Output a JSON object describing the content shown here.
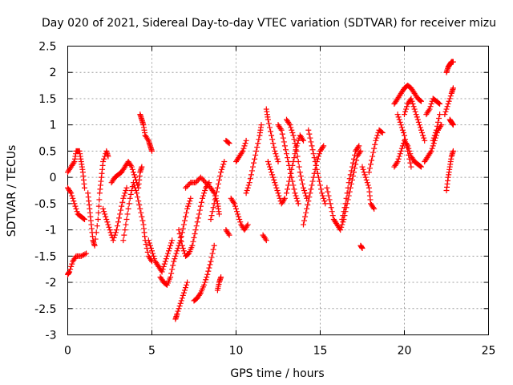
{
  "chart_data": {
    "type": "scatter",
    "title": "Day 020 of 2021, Sidereal Day-to-day VTEC variation (SDTVAR) for receiver mizu",
    "xlabel": "GPS time / hours",
    "ylabel": "SDTVAR / TECUs",
    "xlim": [
      0,
      25
    ],
    "ylim": [
      -3,
      2.5
    ],
    "grid": true,
    "marker": "+",
    "color": "#ff0000",
    "x_ticks": [
      0,
      5,
      10,
      15,
      20,
      25
    ],
    "x_tick_labels": [
      "0",
      "5",
      "10",
      "15",
      "20",
      "25"
    ],
    "y_ticks": [
      -3,
      -2.5,
      -2,
      -1.5,
      -1,
      -0.5,
      0,
      0.5,
      1,
      1.5,
      2,
      2.5
    ],
    "y_tick_labels": [
      "-3",
      "-2.5",
      "-2",
      "-1.5",
      "-1",
      "-0.5",
      "0",
      "0.5",
      "1",
      "1.5",
      "2",
      "2.5"
    ],
    "tracks": [
      [
        [
          0.0,
          0.1
        ],
        [
          0.2,
          0.2
        ],
        [
          0.4,
          0.3
        ],
        [
          0.5,
          0.5
        ],
        [
          0.7,
          0.5
        ],
        [
          0.8,
          0.3
        ],
        [
          0.9,
          0.1
        ],
        [
          1.0,
          -0.2
        ]
      ],
      [
        [
          0.0,
          -0.2
        ],
        [
          0.2,
          -0.3
        ],
        [
          0.4,
          -0.5
        ],
        [
          0.6,
          -0.7
        ],
        [
          0.8,
          -0.75
        ],
        [
          1.0,
          -0.8
        ]
      ],
      [
        [
          0.0,
          -1.85
        ],
        [
          0.1,
          -1.8
        ],
        [
          0.3,
          -1.6
        ],
        [
          0.5,
          -1.5
        ],
        [
          0.8,
          -1.5
        ],
        [
          1.1,
          -1.45
        ]
      ],
      [
        [
          1.2,
          -0.3
        ],
        [
          1.3,
          -0.6
        ],
        [
          1.4,
          -0.9
        ],
        [
          1.5,
          -1.2
        ],
        [
          1.6,
          -1.3
        ],
        [
          1.8,
          -0.8
        ],
        [
          1.9,
          -0.3
        ],
        [
          2.0,
          0.0
        ],
        [
          2.1,
          0.3
        ],
        [
          2.3,
          0.5
        ],
        [
          2.4,
          0.4
        ]
      ],
      [
        [
          2.1,
          -0.6
        ],
        [
          2.3,
          -0.8
        ],
        [
          2.5,
          -1.0
        ],
        [
          2.7,
          -1.2
        ],
        [
          2.9,
          -1.0
        ],
        [
          3.1,
          -0.7
        ],
        [
          3.3,
          -0.4
        ],
        [
          3.5,
          -0.2
        ]
      ],
      [
        [
          2.6,
          -0.1
        ],
        [
          2.8,
          0.0
        ],
        [
          3.0,
          0.05
        ],
        [
          3.2,
          0.1
        ],
        [
          3.4,
          0.2
        ],
        [
          3.6,
          0.3
        ],
        [
          3.8,
          0.2
        ],
        [
          4.0,
          0.0
        ],
        [
          4.2,
          -0.2
        ],
        [
          4.3,
          0.1
        ],
        [
          4.4,
          0.2
        ]
      ],
      [
        [
          3.3,
          -1.2
        ],
        [
          3.5,
          -0.8
        ],
        [
          3.7,
          -0.4
        ],
        [
          3.9,
          -0.1
        ],
        [
          4.1,
          -0.3
        ],
        [
          4.3,
          -0.6
        ],
        [
          4.5,
          -0.9
        ],
        [
          4.6,
          -1.2
        ],
        [
          4.8,
          -1.5
        ],
        [
          5.0,
          -1.6
        ]
      ],
      [
        [
          4.3,
          1.2
        ],
        [
          4.4,
          1.1
        ],
        [
          4.5,
          1.0
        ],
        [
          4.6,
          0.8
        ],
        [
          4.8,
          0.7
        ],
        [
          4.9,
          0.6
        ],
        [
          5.0,
          0.5
        ]
      ],
      [
        [
          4.8,
          -1.2
        ],
        [
          5.0,
          -1.4
        ],
        [
          5.2,
          -1.6
        ],
        [
          5.4,
          -1.7
        ],
        [
          5.6,
          -1.8
        ],
        [
          5.8,
          -1.6
        ],
        [
          6.0,
          -1.4
        ],
        [
          6.2,
          -1.2
        ]
      ],
      [
        [
          5.5,
          -1.9
        ],
        [
          5.7,
          -2.0
        ],
        [
          5.9,
          -2.05
        ],
        [
          6.1,
          -1.9
        ],
        [
          6.3,
          -1.6
        ],
        [
          6.5,
          -1.4
        ],
        [
          6.7,
          -1.2
        ],
        [
          6.9,
          -0.9
        ],
        [
          7.1,
          -0.6
        ],
        [
          7.3,
          -0.4
        ]
      ],
      [
        [
          6.4,
          -2.7
        ],
        [
          6.5,
          -2.6
        ],
        [
          6.7,
          -2.4
        ],
        [
          6.9,
          -2.2
        ],
        [
          7.1,
          -2.0
        ]
      ],
      [
        [
          6.6,
          -1.0
        ],
        [
          6.8,
          -1.3
        ],
        [
          7.0,
          -1.5
        ],
        [
          7.2,
          -1.45
        ],
        [
          7.4,
          -1.3
        ],
        [
          7.6,
          -1.0
        ],
        [
          7.8,
          -0.7
        ],
        [
          8.0,
          -0.4
        ],
        [
          8.2,
          -0.2
        ],
        [
          8.4,
          -0.1
        ]
      ],
      [
        [
          7.5,
          -2.35
        ],
        [
          7.7,
          -2.3
        ],
        [
          7.9,
          -2.2
        ],
        [
          8.1,
          -2.05
        ],
        [
          8.3,
          -1.85
        ],
        [
          8.5,
          -1.6
        ],
        [
          8.7,
          -1.3
        ]
      ],
      [
        [
          7.0,
          -0.2
        ],
        [
          7.3,
          -0.1
        ],
        [
          7.6,
          -0.1
        ],
        [
          7.9,
          0.0
        ],
        [
          8.2,
          -0.1
        ],
        [
          8.5,
          -0.2
        ],
        [
          8.7,
          -0.3
        ],
        [
          8.9,
          -0.5
        ],
        [
          9.0,
          -0.7
        ]
      ],
      [
        [
          8.5,
          -0.8
        ],
        [
          8.7,
          -0.5
        ],
        [
          8.9,
          -0.2
        ],
        [
          9.1,
          0.1
        ],
        [
          9.3,
          0.3
        ]
      ],
      [
        [
          8.9,
          -2.15
        ],
        [
          9.0,
          -2.0
        ],
        [
          9.1,
          -1.9
        ]
      ],
      [
        [
          9.4,
          0.7
        ],
        [
          9.6,
          0.65
        ]
      ],
      [
        [
          9.4,
          -1.0
        ],
        [
          9.6,
          -1.1
        ]
      ],
      [
        [
          9.7,
          -0.4
        ],
        [
          9.9,
          -0.5
        ],
        [
          10.1,
          -0.7
        ],
        [
          10.3,
          -0.9
        ],
        [
          10.5,
          -1.0
        ],
        [
          10.7,
          -0.9
        ]
      ],
      [
        [
          10.0,
          0.3
        ],
        [
          10.2,
          0.4
        ],
        [
          10.4,
          0.5
        ],
        [
          10.6,
          0.7
        ]
      ],
      [
        [
          10.6,
          -0.3
        ],
        [
          10.8,
          -0.1
        ],
        [
          11.0,
          0.2
        ],
        [
          11.2,
          0.5
        ],
        [
          11.4,
          0.8
        ],
        [
          11.5,
          1.0
        ]
      ],
      [
        [
          11.6,
          -1.1
        ],
        [
          11.8,
          -1.2
        ]
      ],
      [
        [
          11.8,
          1.3
        ],
        [
          11.9,
          1.1
        ],
        [
          12.1,
          0.8
        ],
        [
          12.3,
          0.5
        ],
        [
          12.5,
          0.3
        ]
      ],
      [
        [
          11.9,
          0.3
        ],
        [
          12.1,
          0.1
        ],
        [
          12.3,
          -0.1
        ],
        [
          12.5,
          -0.3
        ],
        [
          12.7,
          -0.5
        ],
        [
          12.9,
          -0.4
        ]
      ],
      [
        [
          12.5,
          1.0
        ],
        [
          12.7,
          0.9
        ],
        [
          12.9,
          0.6
        ],
        [
          13.1,
          0.3
        ],
        [
          13.3,
          0.0
        ],
        [
          13.5,
          -0.3
        ],
        [
          13.7,
          -0.5
        ]
      ],
      [
        [
          13.0,
          -0.3
        ],
        [
          13.2,
          0.0
        ],
        [
          13.4,
          0.3
        ],
        [
          13.6,
          0.6
        ],
        [
          13.8,
          0.8
        ],
        [
          14.0,
          0.7
        ]
      ],
      [
        [
          13.0,
          1.1
        ],
        [
          13.2,
          1.0
        ],
        [
          13.4,
          0.8
        ],
        [
          13.6,
          0.5
        ],
        [
          13.8,
          0.1
        ],
        [
          14.0,
          -0.2
        ],
        [
          14.2,
          -0.4
        ]
      ],
      [
        [
          14.0,
          -0.9
        ],
        [
          14.2,
          -0.6
        ],
        [
          14.4,
          -0.3
        ],
        [
          14.6,
          0.0
        ],
        [
          14.8,
          0.3
        ],
        [
          15.0,
          0.5
        ],
        [
          15.2,
          0.6
        ]
      ],
      [
        [
          14.3,
          0.9
        ],
        [
          14.5,
          0.6
        ],
        [
          14.7,
          0.3
        ],
        [
          14.9,
          0.0
        ],
        [
          15.1,
          -0.3
        ],
        [
          15.3,
          -0.5
        ]
      ],
      [
        [
          15.4,
          -0.2
        ],
        [
          15.6,
          -0.5
        ],
        [
          15.8,
          -0.8
        ],
        [
          16.0,
          -0.9
        ],
        [
          16.2,
          -1.0
        ],
        [
          16.4,
          -0.8
        ],
        [
          16.6,
          -0.5
        ],
        [
          16.8,
          -0.2
        ],
        [
          17.0,
          0.1
        ],
        [
          17.2,
          0.4
        ],
        [
          17.4,
          0.5
        ]
      ],
      [
        [
          16.3,
          -0.8
        ],
        [
          16.5,
          -0.5
        ],
        [
          16.7,
          -0.1
        ],
        [
          16.9,
          0.2
        ],
        [
          17.1,
          0.5
        ],
        [
          17.3,
          0.6
        ]
      ],
      [
        [
          17.4,
          -1.3
        ],
        [
          17.5,
          -1.35
        ]
      ],
      [
        [
          17.5,
          0.2
        ],
        [
          17.7,
          0.0
        ],
        [
          17.9,
          -0.2
        ],
        [
          18.0,
          -0.5
        ],
        [
          18.2,
          -0.6
        ]
      ],
      [
        [
          17.9,
          0.1
        ],
        [
          18.1,
          0.4
        ],
        [
          18.3,
          0.7
        ],
        [
          18.5,
          0.9
        ],
        [
          18.7,
          0.85
        ]
      ],
      [
        [
          19.4,
          1.4
        ],
        [
          19.6,
          1.5
        ],
        [
          19.8,
          1.6
        ],
        [
          20.0,
          1.7
        ],
        [
          20.2,
          1.75
        ],
        [
          20.4,
          1.7
        ],
        [
          20.6,
          1.6
        ],
        [
          20.8,
          1.5
        ],
        [
          21.0,
          1.45
        ]
      ],
      [
        [
          19.4,
          0.2
        ],
        [
          19.6,
          0.3
        ],
        [
          19.8,
          0.5
        ],
        [
          20.0,
          0.7
        ],
        [
          20.2,
          0.6
        ],
        [
          20.4,
          0.4
        ],
        [
          20.6,
          0.3
        ],
        [
          20.8,
          0.25
        ],
        [
          21.0,
          0.2
        ]
      ],
      [
        [
          19.6,
          1.2
        ],
        [
          19.8,
          1.0
        ],
        [
          20.0,
          0.8
        ],
        [
          20.2,
          0.5
        ],
        [
          20.4,
          0.2
        ]
      ],
      [
        [
          20.0,
          1.2
        ],
        [
          20.2,
          1.4
        ],
        [
          20.4,
          1.5
        ],
        [
          20.6,
          1.3
        ],
        [
          20.8,
          1.1
        ],
        [
          21.0,
          0.9
        ],
        [
          21.2,
          0.7
        ]
      ],
      [
        [
          21.3,
          1.2
        ],
        [
          21.5,
          1.3
        ],
        [
          21.7,
          1.5
        ],
        [
          21.9,
          1.45
        ],
        [
          22.1,
          1.4
        ]
      ],
      [
        [
          21.2,
          0.3
        ],
        [
          21.4,
          0.4
        ],
        [
          21.6,
          0.5
        ],
        [
          21.8,
          0.7
        ],
        [
          22.0,
          0.9
        ],
        [
          22.2,
          1.0
        ]
      ],
      [
        [
          21.7,
          0.7
        ],
        [
          21.9,
          0.9
        ],
        [
          22.1,
          1.2
        ]
      ],
      [
        [
          22.4,
          1.2
        ],
        [
          22.6,
          1.4
        ],
        [
          22.8,
          1.6
        ],
        [
          22.9,
          1.7
        ]
      ],
      [
        [
          22.5,
          2.0
        ],
        [
          22.6,
          2.1
        ],
        [
          22.7,
          2.15
        ],
        [
          22.8,
          2.2
        ],
        [
          22.9,
          2.2
        ]
      ],
      [
        [
          22.7,
          1.1
        ],
        [
          22.8,
          1.05
        ],
        [
          22.9,
          1.0
        ]
      ],
      [
        [
          22.5,
          -0.25
        ],
        [
          22.6,
          0.0
        ],
        [
          22.7,
          0.2
        ],
        [
          22.8,
          0.4
        ],
        [
          22.9,
          0.5
        ]
      ]
    ]
  }
}
